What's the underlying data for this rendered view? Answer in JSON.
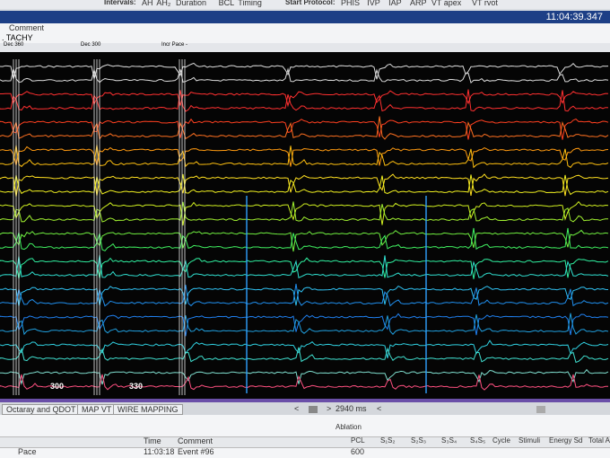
{
  "toolbar": {
    "intervals_label": "Intervals:",
    "intervals": [
      "AH",
      "AH₂",
      "Duration",
      "BCL",
      "Timing"
    ],
    "protocol_label": "Start Protocol:",
    "protocols": [
      "PHIS",
      "IVP",
      "IAP",
      "ARP",
      "VT apex",
      "VT rvot"
    ]
  },
  "clock": "11:04:39.347",
  "comment": {
    "label": "Comment",
    "text": ". TACHY"
  },
  "markers": [
    "Dec 360",
    "Dec 300",
    "Incr Pace -"
  ],
  "cycle_labels": [
    "300",
    "330"
  ],
  "tabs": [
    "Octaray and QDOT",
    "MAP VT",
    "WIRE MAPPING"
  ],
  "sweep": "2940 ms",
  "panel": "Ablation",
  "table": {
    "left_headers": [
      "Time",
      "Comment"
    ],
    "right_headers": [
      "PCL",
      "S₁S₂",
      "S₂S₃",
      "S₃S₄",
      "S₄S₅",
      "Cycle",
      "Stimuli",
      "Energy Sd",
      "Total A"
    ],
    "rows": [
      [
        "Pace",
        "11:03:18",
        "Event #96",
        "600"
      ]
    ]
  }
}
